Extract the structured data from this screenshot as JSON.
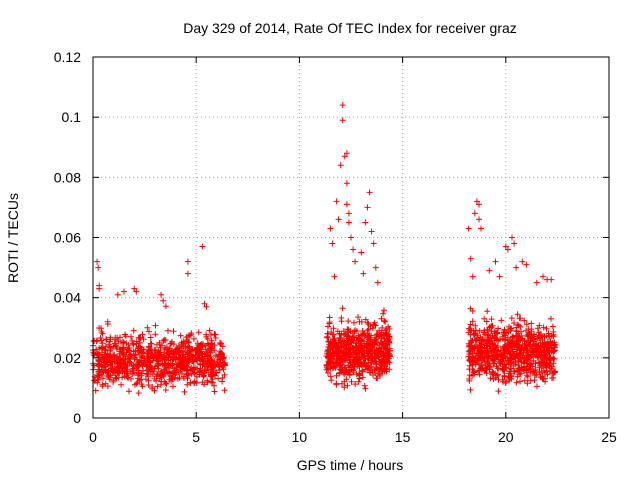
{
  "chart_data": {
    "type": "scatter",
    "title": "Day 329 of 2014, Rate Of TEC Index for receiver graz",
    "xlabel": "GPS time / hours",
    "ylabel": "ROTI / TECUs",
    "xlim": [
      0,
      25
    ],
    "ylim": [
      0,
      0.12
    ],
    "x_ticks": [
      0,
      5,
      10,
      15,
      20,
      25
    ],
    "y_ticks": [
      0,
      0.02,
      0.04,
      0.06,
      0.08,
      0.1,
      0.12
    ],
    "x_tick_labels": [
      "0",
      "5",
      "10",
      "15",
      "20",
      "25"
    ],
    "y_tick_labels": [
      "0",
      "0.02",
      "0.04",
      "0.06",
      "0.08",
      "0.1",
      "0.12"
    ],
    "grid": true,
    "marker": "+",
    "marker_color": "#ff0000",
    "segments": [
      {
        "x_start": 0.0,
        "x_end": 6.4,
        "y_base_min": 0.007,
        "y_base_max": 0.028,
        "density": 900
      },
      {
        "x_start": 11.3,
        "x_end": 14.4,
        "y_base_min": 0.008,
        "y_base_max": 0.032,
        "density": 650
      },
      {
        "x_start": 18.2,
        "x_end": 22.4,
        "y_base_min": 0.008,
        "y_base_max": 0.032,
        "density": 800
      }
    ],
    "notable_points": [
      {
        "x": 0.2,
        "y": 0.052
      },
      {
        "x": 0.25,
        "y": 0.05
      },
      {
        "x": 0.3,
        "y": 0.043
      },
      {
        "x": 0.3,
        "y": 0.044
      },
      {
        "x": 1.2,
        "y": 0.041
      },
      {
        "x": 1.5,
        "y": 0.042
      },
      {
        "x": 2.0,
        "y": 0.043
      },
      {
        "x": 2.1,
        "y": 0.042
      },
      {
        "x": 3.3,
        "y": 0.041
      },
      {
        "x": 3.4,
        "y": 0.039
      },
      {
        "x": 4.6,
        "y": 0.052
      },
      {
        "x": 4.6,
        "y": 0.048
      },
      {
        "x": 5.3,
        "y": 0.057
      },
      {
        "x": 5.4,
        "y": 0.038
      },
      {
        "x": 5.5,
        "y": 0.037
      },
      {
        "x": 11.5,
        "y": 0.063
      },
      {
        "x": 11.6,
        "y": 0.058
      },
      {
        "x": 11.7,
        "y": 0.047
      },
      {
        "x": 11.8,
        "y": 0.072
      },
      {
        "x": 11.9,
        "y": 0.066
      },
      {
        "x": 12.0,
        "y": 0.084
      },
      {
        "x": 12.1,
        "y": 0.099
      },
      {
        "x": 12.1,
        "y": 0.104
      },
      {
        "x": 12.2,
        "y": 0.087
      },
      {
        "x": 12.3,
        "y": 0.088
      },
      {
        "x": 12.3,
        "y": 0.078
      },
      {
        "x": 12.3,
        "y": 0.071
      },
      {
        "x": 12.4,
        "y": 0.068
      },
      {
        "x": 12.4,
        "y": 0.065
      },
      {
        "x": 12.5,
        "y": 0.06
      },
      {
        "x": 12.6,
        "y": 0.056
      },
      {
        "x": 12.7,
        "y": 0.052
      },
      {
        "x": 13.0,
        "y": 0.055
      },
      {
        "x": 13.1,
        "y": 0.048
      },
      {
        "x": 13.2,
        "y": 0.065
      },
      {
        "x": 13.3,
        "y": 0.07
      },
      {
        "x": 13.4,
        "y": 0.075
      },
      {
        "x": 13.5,
        "y": 0.062
      },
      {
        "x": 13.6,
        "y": 0.058
      },
      {
        "x": 13.7,
        "y": 0.05
      },
      {
        "x": 13.8,
        "y": 0.045
      },
      {
        "x": 18.2,
        "y": 0.063
      },
      {
        "x": 18.3,
        "y": 0.053
      },
      {
        "x": 18.4,
        "y": 0.047
      },
      {
        "x": 18.5,
        "y": 0.068
      },
      {
        "x": 18.6,
        "y": 0.072
      },
      {
        "x": 18.7,
        "y": 0.071
      },
      {
        "x": 18.7,
        "y": 0.066
      },
      {
        "x": 18.8,
        "y": 0.063
      },
      {
        "x": 19.2,
        "y": 0.049
      },
      {
        "x": 19.5,
        "y": 0.052
      },
      {
        "x": 19.7,
        "y": 0.047
      },
      {
        "x": 20.0,
        "y": 0.057
      },
      {
        "x": 20.1,
        "y": 0.056
      },
      {
        "x": 20.3,
        "y": 0.06
      },
      {
        "x": 20.4,
        "y": 0.058
      },
      {
        "x": 20.5,
        "y": 0.05
      },
      {
        "x": 20.8,
        "y": 0.052
      },
      {
        "x": 21.0,
        "y": 0.051
      },
      {
        "x": 21.5,
        "y": 0.045
      },
      {
        "x": 21.8,
        "y": 0.047
      },
      {
        "x": 22.0,
        "y": 0.046
      },
      {
        "x": 22.2,
        "y": 0.046
      }
    ]
  }
}
